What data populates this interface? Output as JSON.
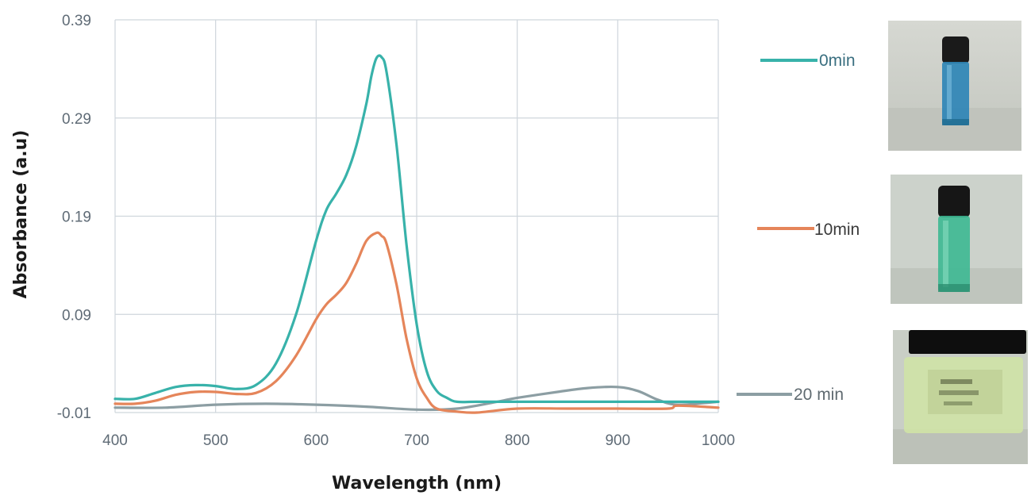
{
  "chart_data": {
    "type": "line",
    "title": "",
    "xlabel": "Wavelength (nm)",
    "ylabel": "Absorbance  (a.u)",
    "xlim": [
      400,
      1000
    ],
    "ylim": [
      -0.01,
      0.39
    ],
    "x_ticks": [
      400,
      500,
      600,
      700,
      800,
      900,
      1000
    ],
    "y_ticks": [
      -0.01,
      0.09,
      0.19,
      0.29,
      0.39
    ],
    "x_tick_labels": [
      "400",
      "500",
      "600",
      "700",
      "800",
      "900",
      "1000"
    ],
    "y_tick_labels": [
      "-0.01",
      "0.09",
      "0.19",
      "0.29",
      "0.39"
    ],
    "grid": true,
    "legend_placement": "right",
    "series": [
      {
        "name": "0min",
        "color": "#38b2aa",
        "x": [
          400,
          420,
          440,
          460,
          480,
          500,
          520,
          540,
          560,
          580,
          600,
          610,
          620,
          630,
          640,
          650,
          655,
          660,
          665,
          670,
          680,
          690,
          700,
          710,
          720,
          730,
          740,
          760,
          800,
          850,
          900,
          950,
          1000
        ],
        "y": [
          0.004,
          0.004,
          0.01,
          0.016,
          0.018,
          0.017,
          0.014,
          0.018,
          0.04,
          0.09,
          0.165,
          0.196,
          0.213,
          0.232,
          0.262,
          0.305,
          0.333,
          0.351,
          0.352,
          0.337,
          0.262,
          0.16,
          0.08,
          0.032,
          0.012,
          0.005,
          0.001,
          0.001,
          0.001,
          0.001,
          0.001,
          0.001,
          0.001
        ]
      },
      {
        "name": "10min",
        "color": "#e5855a",
        "x": [
          400,
          420,
          440,
          460,
          480,
          500,
          520,
          540,
          560,
          580,
          600,
          610,
          620,
          630,
          640,
          650,
          660,
          665,
          670,
          680,
          690,
          700,
          710,
          720,
          740,
          760,
          800,
          850,
          900,
          950,
          960,
          1000
        ],
        "y": [
          -0.001,
          -0.001,
          0.002,
          0.008,
          0.011,
          0.011,
          0.009,
          0.01,
          0.022,
          0.048,
          0.085,
          0.1,
          0.11,
          0.122,
          0.142,
          0.165,
          0.173,
          0.17,
          0.162,
          0.12,
          0.065,
          0.025,
          0.005,
          -0.006,
          -0.009,
          -0.01,
          -0.006,
          -0.006,
          -0.006,
          -0.006,
          -0.003,
          -0.005
        ]
      },
      {
        "name": "20 min",
        "color": "#8c9ea3",
        "x": [
          400,
          450,
          500,
          550,
          600,
          650,
          700,
          740,
          780,
          800,
          840,
          870,
          900,
          920,
          940,
          960,
          1000
        ],
        "y": [
          -0.005,
          -0.005,
          -0.002,
          -0.001,
          -0.002,
          -0.004,
          -0.007,
          -0.006,
          0.001,
          0.005,
          0.011,
          0.015,
          0.016,
          0.012,
          0.003,
          -0.002,
          0.001
        ]
      }
    ]
  },
  "photos": [
    {
      "name": "vial-0min",
      "liquid": "#2f86b6",
      "bg": "#c9cec7"
    },
    {
      "name": "vial-10min",
      "liquid": "#3db892",
      "bg": "#c3ccc4"
    },
    {
      "name": "vial-20min",
      "liquid": "#cfe3a6",
      "bg": "#c5cbc1"
    }
  ]
}
